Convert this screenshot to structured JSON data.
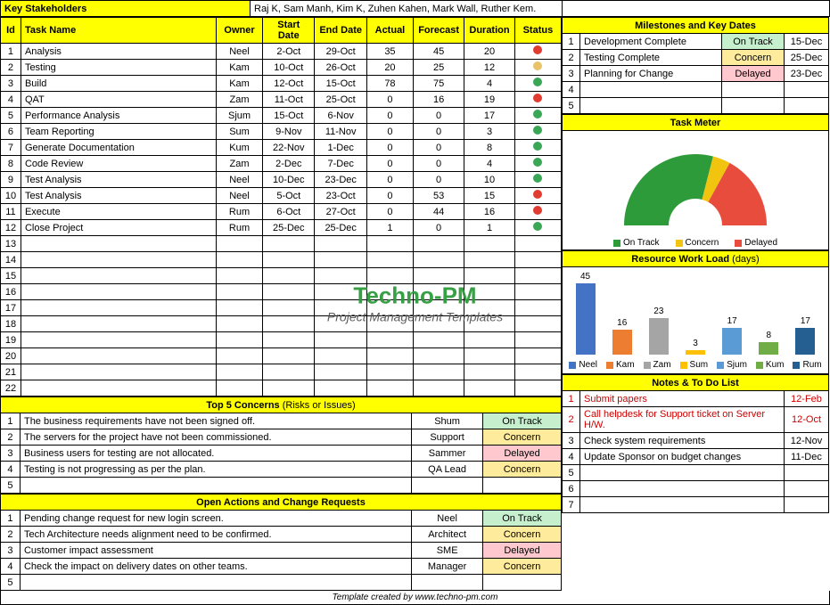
{
  "stakeholders": {
    "label": "Key Stakeholders",
    "value": "Raj K, Sam Manh, Kim K, Zuhen Kahen, Mark Wall, Ruther Kem."
  },
  "tasks": {
    "headers": {
      "id": "Id",
      "name": "Task Name",
      "owner": "Owner",
      "start": "Start Date",
      "end": "End Date",
      "actual": "Actual",
      "forecast": "Forecast",
      "duration": "Duration",
      "status": "Status"
    },
    "rows": [
      {
        "id": "1",
        "name": "Analysis",
        "owner": "Neel",
        "start": "2-Oct",
        "end": "29-Oct",
        "actual": "35",
        "forecast": "45",
        "duration": "20",
        "status": "#e03c31"
      },
      {
        "id": "2",
        "name": "Testing",
        "owner": "Kam",
        "start": "10-Oct",
        "end": "26-Oct",
        "actual": "20",
        "forecast": "25",
        "duration": "12",
        "status": "#e8c36a"
      },
      {
        "id": "3",
        "name": "Build",
        "owner": "Kam",
        "start": "12-Oct",
        "end": "15-Oct",
        "actual": "78",
        "forecast": "75",
        "duration": "4",
        "status": "#3aa757"
      },
      {
        "id": "4",
        "name": "QAT",
        "owner": "Zam",
        "start": "11-Oct",
        "end": "25-Oct",
        "actual": "0",
        "forecast": "16",
        "duration": "19",
        "status": "#e03c31"
      },
      {
        "id": "5",
        "name": "Performance Analysis",
        "owner": "Sjum",
        "start": "15-Oct",
        "end": "6-Nov",
        "actual": "0",
        "forecast": "0",
        "duration": "17",
        "status": "#3aa757"
      },
      {
        "id": "6",
        "name": "Team Reporting",
        "owner": "Sum",
        "start": "9-Nov",
        "end": "11-Nov",
        "actual": "0",
        "forecast": "0",
        "duration": "3",
        "status": "#3aa757"
      },
      {
        "id": "7",
        "name": "Generate Documentation",
        "owner": "Kum",
        "start": "22-Nov",
        "end": "1-Dec",
        "actual": "0",
        "forecast": "0",
        "duration": "8",
        "status": "#3aa757"
      },
      {
        "id": "8",
        "name": "Code Review",
        "owner": "Zam",
        "start": "2-Dec",
        "end": "7-Dec",
        "actual": "0",
        "forecast": "0",
        "duration": "4",
        "status": "#3aa757"
      },
      {
        "id": "9",
        "name": "Test Analysis",
        "owner": "Neel",
        "start": "10-Dec",
        "end": "23-Dec",
        "actual": "0",
        "forecast": "0",
        "duration": "10",
        "status": "#3aa757"
      },
      {
        "id": "10",
        "name": "Test Analysis",
        "owner": "Neel",
        "start": "5-Oct",
        "end": "23-Oct",
        "actual": "0",
        "forecast": "53",
        "duration": "15",
        "status": "#e03c31"
      },
      {
        "id": "11",
        "name": "Execute",
        "owner": "Rum",
        "start": "6-Oct",
        "end": "27-Oct",
        "actual": "0",
        "forecast": "44",
        "duration": "16",
        "status": "#e03c31"
      },
      {
        "id": "12",
        "name": "Close Project",
        "owner": "Rum",
        "start": "25-Dec",
        "end": "25-Dec",
        "actual": "1",
        "forecast": "0",
        "duration": "1",
        "status": "#3aa757"
      }
    ],
    "empty_rows": [
      "13",
      "14",
      "15",
      "16",
      "17",
      "18",
      "19",
      "20",
      "21",
      "22"
    ]
  },
  "concerns": {
    "title": "Top 5 Concerns",
    "title_suffix": " (Risks or Issues)",
    "rows": [
      {
        "id": "1",
        "text": "The business requirements have not been signed off.",
        "owner": "Shum",
        "status": "On Track",
        "cls": "ontrack-cell"
      },
      {
        "id": "2",
        "text": "The servers for the project have not been commissioned.",
        "owner": "Support",
        "status": "Concern",
        "cls": "concern-cell"
      },
      {
        "id": "3",
        "text": "Business users for testing are not allocated.",
        "owner": "Sammer",
        "status": "Delayed",
        "cls": "delayed-cell"
      },
      {
        "id": "4",
        "text": "Testing is not progressing as per the plan.",
        "owner": "QA Lead",
        "status": "Concern",
        "cls": "concern-cell"
      },
      {
        "id": "5",
        "text": "",
        "owner": "",
        "status": "",
        "cls": ""
      }
    ]
  },
  "actions": {
    "title": "Open Actions and Change Requests",
    "rows": [
      {
        "id": "1",
        "text": "Pending change request for new login screen.",
        "owner": "Neel",
        "status": "On Track",
        "cls": "ontrack-cell"
      },
      {
        "id": "2",
        "text": "Tech Architecture needs alignment need to be confirmed.",
        "owner": "Architect",
        "status": "Concern",
        "cls": "concern-cell"
      },
      {
        "id": "3",
        "text": "Customer impact assessment",
        "owner": "SME",
        "status": "Delayed",
        "cls": "delayed-cell"
      },
      {
        "id": "4",
        "text": "Check the impact on delivery dates on other teams.",
        "owner": "Manager",
        "status": "Concern",
        "cls": "concern-cell"
      },
      {
        "id": "5",
        "text": "",
        "owner": "",
        "status": "",
        "cls": ""
      }
    ]
  },
  "milestones": {
    "title": "Milestones and Key Dates",
    "rows": [
      {
        "id": "1",
        "text": "Development Complete",
        "status": "On Track",
        "cls": "ontrack-cell",
        "date": "15-Dec"
      },
      {
        "id": "2",
        "text": "Testing Complete",
        "status": "Concern",
        "cls": "concern-cell",
        "date": "25-Dec"
      },
      {
        "id": "3",
        "text": "Planning for Change",
        "status": "Delayed",
        "cls": "delayed-cell",
        "date": "23-Dec"
      },
      {
        "id": "4",
        "text": "",
        "status": "",
        "cls": "",
        "date": ""
      },
      {
        "id": "5",
        "text": "",
        "status": "",
        "cls": "",
        "date": ""
      }
    ]
  },
  "task_meter": {
    "title": "Task Meter",
    "segments": [
      {
        "label": "On Track",
        "color": "#2e9b3a",
        "pct": 58
      },
      {
        "label": "Concern",
        "color": "#f1c40f",
        "pct": 8
      },
      {
        "label": "Delayed",
        "color": "#e74c3c",
        "pct": 34
      }
    ],
    "legend": [
      {
        "label": "On Track",
        "color": "#2e9b3a"
      },
      {
        "label": "Concern",
        "color": "#f1c40f"
      },
      {
        "label": "Delayed",
        "color": "#e74c3c"
      }
    ]
  },
  "workload": {
    "title": "Resource Work Load",
    "title_suffix": " (days)",
    "max": 45,
    "bars": [
      {
        "name": "Neel",
        "value": 45,
        "color": "#4472c4"
      },
      {
        "name": "Kam",
        "value": 16,
        "color": "#ed7d31"
      },
      {
        "name": "Zam",
        "value": 23,
        "color": "#a5a5a5"
      },
      {
        "name": "Sum",
        "value": 3,
        "color": "#ffc000"
      },
      {
        "name": "Sjum",
        "value": 17,
        "color": "#5b9bd5"
      },
      {
        "name": "Kum",
        "value": 8,
        "color": "#70ad47"
      },
      {
        "name": "Rum",
        "value": 17,
        "color": "#255e91"
      }
    ]
  },
  "notes": {
    "title": "Notes & To Do List",
    "rows": [
      {
        "id": "1",
        "text": "Submit papers",
        "date": "12-Feb",
        "red": true
      },
      {
        "id": "2",
        "text": "Call helpdesk for Support ticket on Server H/W.",
        "date": "12-Oct",
        "red": true
      },
      {
        "id": "3",
        "text": "Check system requirements",
        "date": "12-Nov",
        "red": false
      },
      {
        "id": "4",
        "text": "Update Sponsor on budget changes",
        "date": "11-Dec",
        "red": false
      },
      {
        "id": "5",
        "text": "",
        "date": "",
        "red": false
      },
      {
        "id": "6",
        "text": "",
        "date": "",
        "red": false
      },
      {
        "id": "7",
        "text": "",
        "date": "",
        "red": false
      }
    ]
  },
  "watermark": {
    "title": "Techno-PM",
    "sub": "Project Management Templates"
  },
  "footer": "Template created by www.techno-pm.com"
}
